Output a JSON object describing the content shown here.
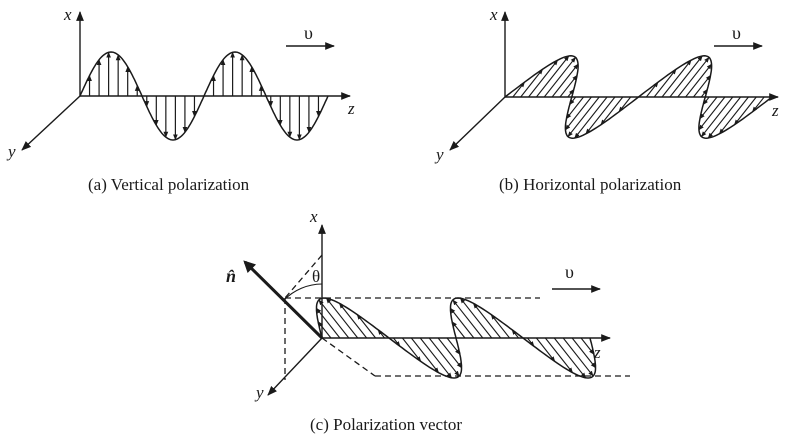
{
  "panels": {
    "a": {
      "caption": "(a) Vertical polarization",
      "axis_x": "x",
      "axis_y": "y",
      "axis_z": "z",
      "velocity": "υ"
    },
    "b": {
      "caption": "(b) Horizontal polarization",
      "axis_x": "x",
      "axis_y": "y",
      "axis_z": "z",
      "velocity": "υ"
    },
    "c": {
      "caption": "(c) Polarization vector",
      "axis_x": "x",
      "axis_y": "y",
      "axis_z": "z",
      "velocity": "υ",
      "angle": "θ",
      "unit_vector": "n̂"
    }
  }
}
